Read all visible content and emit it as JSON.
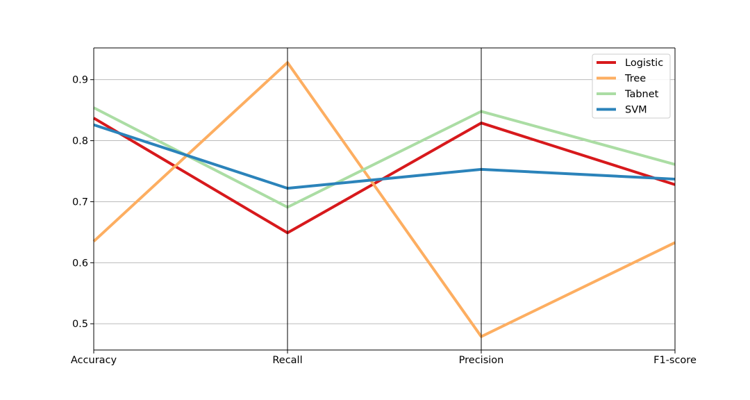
{
  "chart_data": {
    "type": "line",
    "title": "",
    "xlabel": "",
    "ylabel": "",
    "categories": [
      "Accuracy",
      "Recall",
      "Precision",
      "F1-score"
    ],
    "ylim": [
      0.457,
      0.952
    ],
    "yticks": [
      0.5,
      0.6,
      0.7,
      0.8,
      0.9
    ],
    "ytick_labels": [
      "0.5",
      "0.6",
      "0.7",
      "0.8",
      "0.9"
    ],
    "grid": "horizontal gridlines at y ticks; vertical axis line at each category",
    "legend_position": "top-right",
    "series": [
      {
        "name": "Logistic",
        "color": "#d7191c",
        "values": [
          0.837,
          0.649,
          0.829,
          0.728
        ]
      },
      {
        "name": "Tree",
        "color": "#fdae61",
        "values": [
          0.635,
          0.928,
          0.479,
          0.633
        ]
      },
      {
        "name": "Tabnet",
        "color": "#abdda4",
        "values": [
          0.854,
          0.691,
          0.848,
          0.761
        ]
      },
      {
        "name": "SVM",
        "color": "#2b83ba",
        "values": [
          0.826,
          0.722,
          0.753,
          0.737
        ]
      }
    ]
  }
}
